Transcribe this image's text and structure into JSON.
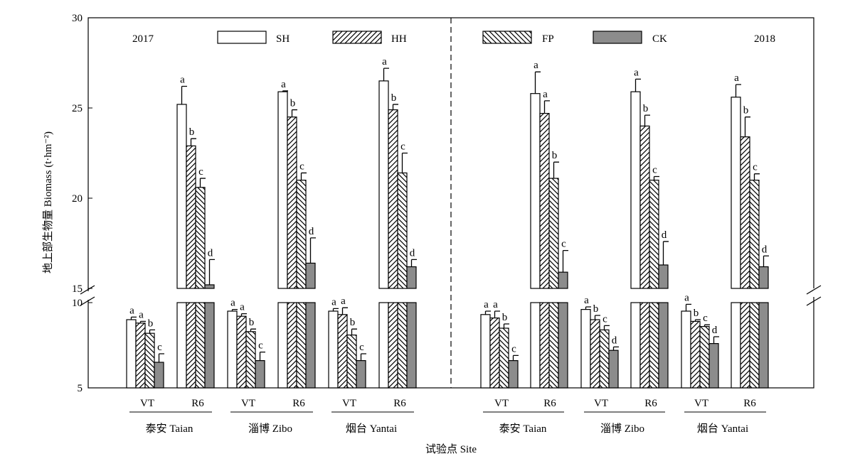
{
  "chart_data": {
    "type": "bar",
    "ylabel": "地上部生物量 Biomass (t·hm⁻²)",
    "xlabel": "试验点 Site",
    "y_axis": {
      "lower_range": [
        5,
        10
      ],
      "upper_range": [
        15,
        30
      ],
      "break": "broken axis between 10 and 15",
      "tick_labels": [
        "5",
        "10",
        "15",
        "20",
        "25",
        "30"
      ]
    },
    "years": [
      "2017",
      "2018"
    ],
    "sites": [
      "泰安 Taian",
      "淄博 Zibo",
      "烟台 Yantai"
    ],
    "stages": [
      "VT",
      "R6"
    ],
    "series": [
      {
        "name": "SH",
        "pattern": "open"
      },
      {
        "name": "HH",
        "pattern": "forward-hatch"
      },
      {
        "name": "FP",
        "pattern": "back-hatch"
      },
      {
        "name": "CK",
        "pattern": "grey",
        "color": "#8c8c8c"
      }
    ],
    "groups": [
      {
        "year": "2017",
        "site": "泰安 Taian",
        "stage": "VT",
        "values": [
          9.0,
          8.8,
          8.2,
          6.5
        ],
        "errors": [
          0.15,
          0.1,
          0.2,
          0.5
        ],
        "labels": [
          "a",
          "a",
          "b",
          "c"
        ]
      },
      {
        "year": "2017",
        "site": "泰安 Taian",
        "stage": "R6",
        "values": [
          25.2,
          22.9,
          20.6,
          15.2
        ],
        "errors": [
          1.0,
          0.4,
          0.5,
          1.4
        ],
        "labels": [
          "a",
          "b",
          "c",
          "d"
        ]
      },
      {
        "year": "2017",
        "site": "淄博 Zibo",
        "stage": "VT",
        "values": [
          9.5,
          9.2,
          8.3,
          6.6
        ],
        "errors": [
          0.1,
          0.15,
          0.15,
          0.5
        ],
        "labels": [
          "a",
          "a",
          "b",
          "c"
        ]
      },
      {
        "year": "2017",
        "site": "淄博 Zibo",
        "stage": "R6",
        "values": [
          25.9,
          24.5,
          21.0,
          16.4
        ],
        "errors": [
          0.05,
          0.4,
          0.4,
          1.4
        ],
        "labels": [
          "a",
          "b",
          "c",
          "d"
        ]
      },
      {
        "year": "2017",
        "site": "烟台 Yantai",
        "stage": "VT",
        "values": [
          9.5,
          9.3,
          8.1,
          6.6
        ],
        "errors": [
          0.15,
          0.4,
          0.35,
          0.4
        ],
        "labels": [
          "a",
          "a",
          "b",
          "c"
        ]
      },
      {
        "year": "2017",
        "site": "烟台 Yantai",
        "stage": "R6",
        "values": [
          26.5,
          24.9,
          21.4,
          16.2
        ],
        "errors": [
          0.7,
          0.3,
          1.1,
          0.4
        ],
        "labels": [
          "a",
          "b",
          "c",
          "d"
        ]
      },
      {
        "year": "2018",
        "site": "泰安 Taian",
        "stage": "VT",
        "values": [
          9.3,
          9.1,
          8.5,
          6.6
        ],
        "errors": [
          0.2,
          0.4,
          0.25,
          0.3
        ],
        "labels": [
          "a",
          "a",
          "b",
          "c"
        ]
      },
      {
        "year": "2018",
        "site": "泰安 Taian",
        "stage": "R6",
        "values": [
          25.8,
          24.7,
          21.1,
          15.9
        ],
        "errors": [
          1.2,
          0.7,
          0.9,
          1.2
        ],
        "labels": [
          "a",
          "a",
          "b",
          "c"
        ]
      },
      {
        "year": "2018",
        "site": "淄博 Zibo",
        "stage": "VT",
        "values": [
          9.6,
          9.0,
          8.4,
          7.2
        ],
        "errors": [
          0.15,
          0.25,
          0.25,
          0.2
        ],
        "labels": [
          "a",
          "b",
          "c",
          "d"
        ]
      },
      {
        "year": "2018",
        "site": "淄博 Zibo",
        "stage": "R6",
        "values": [
          25.9,
          24.0,
          21.0,
          16.3
        ],
        "errors": [
          0.7,
          0.6,
          0.2,
          1.3
        ],
        "labels": [
          "a",
          "b",
          "c",
          "d"
        ]
      },
      {
        "year": "2018",
        "site": "烟台 Yantai",
        "stage": "VT",
        "values": [
          9.5,
          8.9,
          8.6,
          7.6
        ],
        "errors": [
          0.4,
          0.1,
          0.1,
          0.4
        ],
        "labels": [
          "a",
          "b",
          "c",
          "d"
        ]
      },
      {
        "year": "2018",
        "site": "烟台 Yantai",
        "stage": "R6",
        "values": [
          25.6,
          23.4,
          21.0,
          16.2
        ],
        "errors": [
          0.7,
          1.1,
          0.35,
          0.6
        ],
        "labels": [
          "a",
          "b",
          "c",
          "d"
        ]
      }
    ],
    "legend_placement": "top-center",
    "grid": false
  }
}
